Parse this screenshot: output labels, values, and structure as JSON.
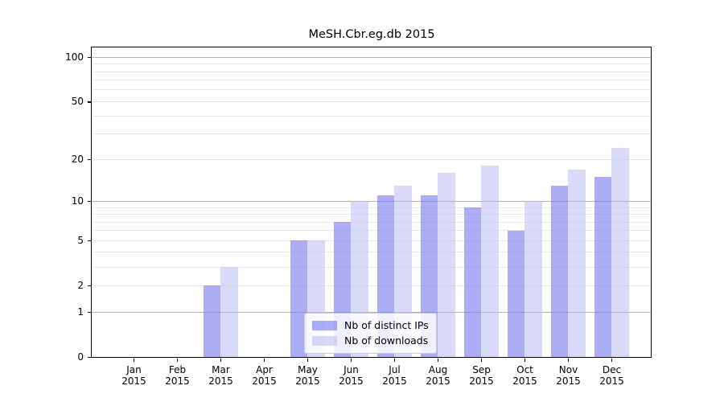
{
  "figure": {
    "title": "MeSH.Cbr.eg.db 2015"
  },
  "chart_data": {
    "type": "bar",
    "title": "MeSH.Cbr.eg.db 2015",
    "xlabel": "",
    "ylabel": "",
    "yscale": "log1p",
    "ylim": [
      0,
      115
    ],
    "grid": "horizontal",
    "legend_position": "inside-bottom-center",
    "categories": [
      "Jan 2015",
      "Feb 2015",
      "Mar 2015",
      "Apr 2015",
      "May 2015",
      "Jun 2015",
      "Jul 2015",
      "Aug 2015",
      "Sep 2015",
      "Oct 2015",
      "Nov 2015",
      "Dec 2015"
    ],
    "months": [
      "Jan",
      "Feb",
      "Mar",
      "Apr",
      "May",
      "Jun",
      "Jul",
      "Aug",
      "Sep",
      "Oct",
      "Nov",
      "Dec"
    ],
    "year": "2015",
    "yticks": [
      0,
      1,
      2,
      5,
      10,
      20,
      50,
      100
    ],
    "minor_gridlines": [
      2,
      3,
      4,
      5,
      6,
      7,
      8,
      9,
      20,
      30,
      40,
      50,
      60,
      70,
      80,
      90
    ],
    "major_gridlines": [
      1,
      10,
      100
    ],
    "series": [
      {
        "name": "Nb of distinct IPs",
        "color": "rgba(122,122,240,0.62)",
        "values": [
          0,
          0,
          2,
          0,
          5,
          7,
          11,
          11,
          9,
          6,
          13,
          15
        ]
      },
      {
        "name": "Nb of downloads",
        "color": "rgba(186,186,242,0.55)",
        "values": [
          0,
          0,
          3,
          0,
          5,
          10,
          13,
          16,
          18,
          10,
          17,
          24
        ]
      }
    ]
  },
  "colors": {
    "background": "#ffffff",
    "axis": "#000000",
    "grid_major": "#b3b3b3",
    "grid_minor": "#e9e9e9",
    "legend_border": "#cccccc",
    "legend_background": "rgba(255,255,255,0.8)",
    "bar_distinct_ips": "rgba(122,122,240,0.62)",
    "bar_downloads": "rgba(186,186,242,0.55)"
  }
}
